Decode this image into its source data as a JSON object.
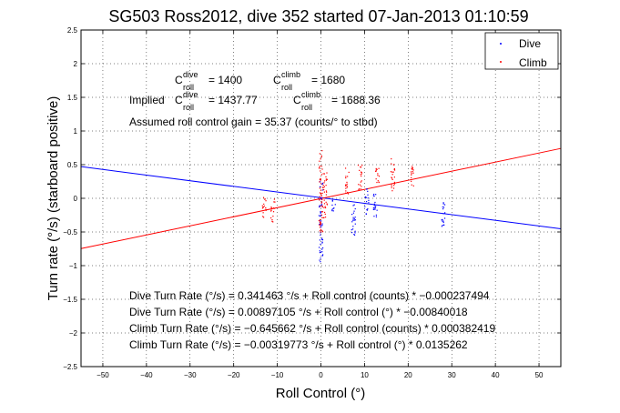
{
  "chart_data": {
    "type": "scatter",
    "title": "SG503 Ross2012, dive 352 started 07-Jan-2013 01:10:59",
    "xlabel": "Roll Control (°)",
    "ylabel": "Turn rate (°/s) (starboard positive)",
    "xlim": [
      -55,
      55
    ],
    "ylim": [
      -2.5,
      2.5
    ],
    "xticks": [
      -50,
      -40,
      -30,
      -20,
      -10,
      0,
      10,
      20,
      30,
      40,
      50
    ],
    "yticks": [
      -2.5,
      -2,
      -1.5,
      -1,
      -0.5,
      0,
      0.5,
      1,
      1.5,
      2,
      2.5
    ],
    "xtick_labels": [
      "−50",
      "−40",
      "−30",
      "−20",
      "−10",
      "0",
      "10",
      "20",
      "30",
      "40",
      "50"
    ],
    "ytick_labels": [
      "−2.5",
      "−2",
      "−1.5",
      "−1",
      "−0.5",
      "0",
      "0.5",
      "1",
      "1.5",
      "2",
      "2.5"
    ],
    "grid": true,
    "legend_position": "top-right",
    "series": [
      {
        "name": "Dive",
        "color": "#0000ff",
        "marker": "dot",
        "clusters": [
          {
            "x": 0,
            "ymin": -0.95,
            "ymax": 0.3
          },
          {
            "x": 3,
            "ymin": -0.2,
            "ymax": 0.0
          },
          {
            "x": 7.5,
            "ymin": -0.55,
            "ymax": -0.05
          },
          {
            "x": 10.5,
            "ymin": -0.25,
            "ymax": 0.15
          },
          {
            "x": 12.5,
            "ymin": -0.3,
            "ymax": 0.1
          },
          {
            "x": 28,
            "ymin": -0.45,
            "ymax": -0.05
          }
        ]
      },
      {
        "name": "Climb",
        "color": "#ff0000",
        "marker": "dot",
        "clusters": [
          {
            "x": -13,
            "ymin": -0.3,
            "ymax": 0.05
          },
          {
            "x": -11,
            "ymin": -0.35,
            "ymax": 0.0
          },
          {
            "x": 0,
            "ymin": -0.5,
            "ymax": 0.75
          },
          {
            "x": 1,
            "ymin": -0.3,
            "ymax": 0.4
          },
          {
            "x": 6,
            "ymin": 0.05,
            "ymax": 0.45
          },
          {
            "x": 9,
            "ymin": 0.1,
            "ymax": 0.5
          },
          {
            "x": 13,
            "ymin": 0.2,
            "ymax": 0.5
          },
          {
            "x": 16.5,
            "ymin": 0.1,
            "ymax": 0.6
          },
          {
            "x": 21,
            "ymin": 0.15,
            "ymax": 0.5
          }
        ]
      }
    ],
    "fit_lines": [
      {
        "series": "Dive",
        "color": "#0000ff",
        "intercept": 0.00897105,
        "slope": -0.00840018
      },
      {
        "series": "Climb",
        "color": "#ff0000",
        "intercept": -0.00319773,
        "slope": 0.0135262
      }
    ],
    "legend": [
      {
        "label": "Dive",
        "color": "#0000ff"
      },
      {
        "label": "Climb",
        "color": "#ff0000"
      }
    ],
    "annotations": {
      "c_dive": {
        "sym": "C",
        "sup": "dive",
        "sub": "roll",
        "value": "= 1400"
      },
      "c_climb": {
        "sym": "C",
        "sup": "climb",
        "sub": "roll",
        "value": "= 1680"
      },
      "implied_prefix": "Implied",
      "implied_dive": {
        "sym": "C",
        "sup": "dive",
        "sub": "roll",
        "value": "= 1437.77"
      },
      "implied_climb": {
        "sym": "C",
        "sup": "climb",
        "sub": "roll",
        "value": "= 1688.36"
      },
      "gain": "Assumed roll control gain = 35.37 (counts/° to stbd)",
      "fit_lines": [
        "Dive Turn Rate (°/s) = 0.341463 °/s + Roll control (counts) * −0.000237494",
        "Dive Turn Rate (°/s) = 0.00897105 °/s + Roll control (°) * −0.00840018",
        "Climb Turn Rate (°/s) = −0.645662 °/s + Roll control (counts) * 0.000382419",
        "Climb Turn Rate (°/s) = −0.00319773 °/s + Roll control (°) * 0.0135262"
      ]
    }
  }
}
